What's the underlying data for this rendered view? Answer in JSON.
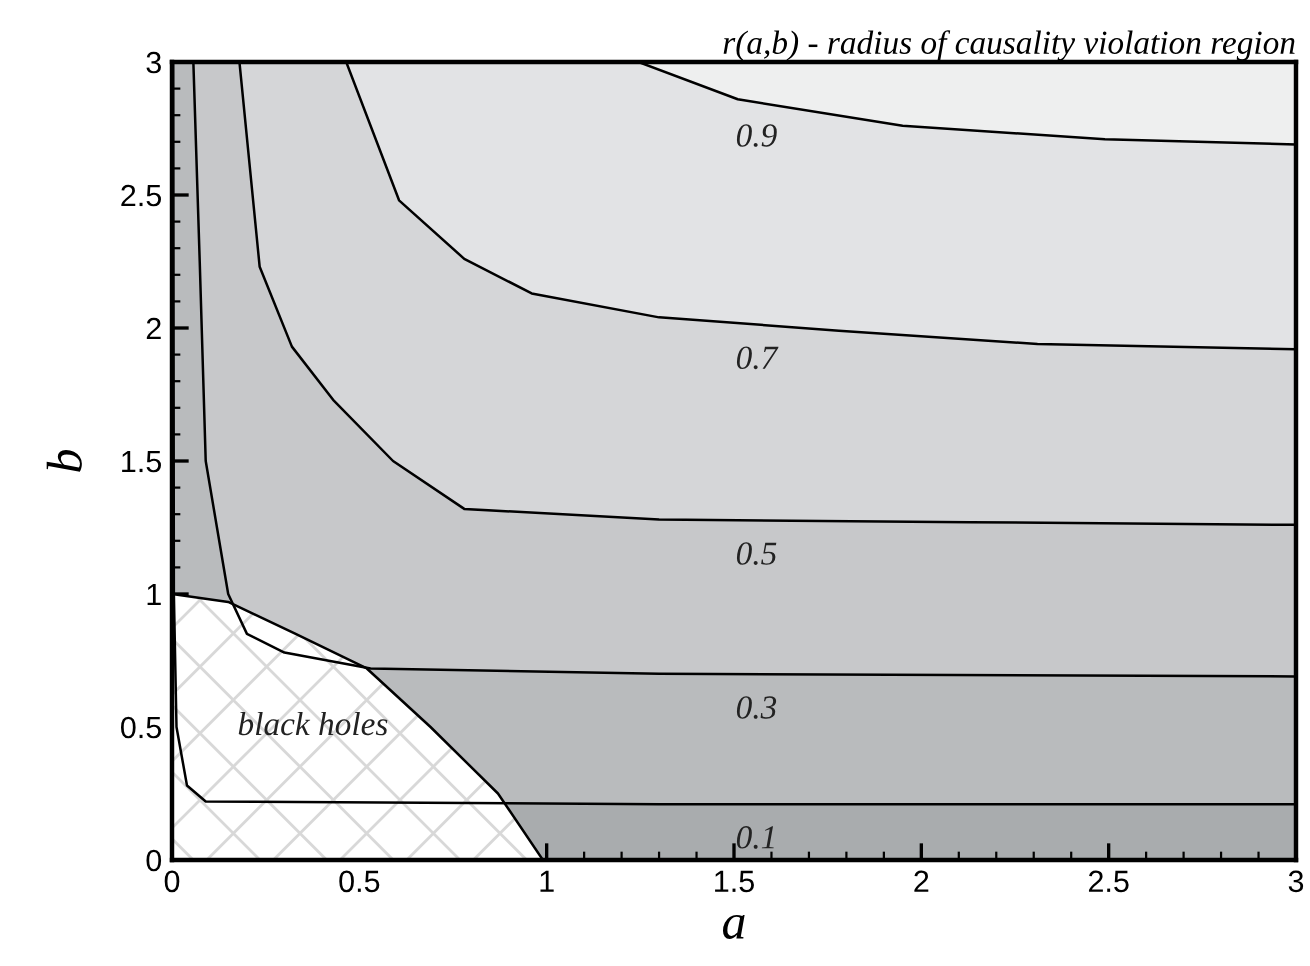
{
  "chart_data": {
    "type": "line",
    "title": "r(a,b) - radius of causality violation region",
    "xlabel": "a",
    "ylabel": "b",
    "xlim": [
      0,
      3
    ],
    "ylim": [
      0,
      3
    ],
    "xticks": [
      0,
      0.5,
      1,
      1.5,
      2,
      2.5,
      3
    ],
    "yticks": [
      0,
      0.5,
      1,
      1.5,
      2,
      2.5,
      3
    ],
    "grid": false,
    "legend": false,
    "colors": [
      "#a9acae",
      "#b9bbbd",
      "#c7c8ca",
      "#d5d6d8",
      "#e2e3e5",
      "#eeefef"
    ],
    "series": [
      {
        "name": "0.1",
        "color": "#000000",
        "x": [
          0.003,
          0.005,
          0.012,
          0.04,
          0.09,
          1.3,
          3.0
        ],
        "values": [
          3.0,
          1.0,
          0.5,
          0.28,
          0.22,
          0.21,
          0.21
        ]
      },
      {
        "name": "0.3",
        "color": "#000000",
        "x": [
          0.057,
          0.074,
          0.09,
          0.12,
          0.15,
          0.2,
          0.3,
          0.53,
          1.3,
          3.0
        ],
        "values": [
          3.0,
          2.25,
          1.5,
          1.25,
          1.0,
          0.85,
          0.78,
          0.72,
          0.7,
          0.69
        ]
      },
      {
        "name": "0.5",
        "color": "#000000",
        "x": [
          0.18,
          0.234,
          0.32,
          0.43,
          0.59,
          0.78,
          1.3,
          2.13,
          3.0
        ],
        "values": [
          3.0,
          2.23,
          1.93,
          1.73,
          1.5,
          1.32,
          1.28,
          1.27,
          1.26
        ]
      },
      {
        "name": "0.7",
        "color": "#000000",
        "x": [
          0.465,
          0.606,
          0.78,
          0.96,
          1.3,
          1.78,
          2.31,
          3.0
        ],
        "values": [
          3.0,
          2.48,
          2.26,
          2.13,
          2.04,
          1.99,
          1.94,
          1.92
        ]
      },
      {
        "name": "0.9",
        "color": "#000000",
        "x": [
          1.245,
          1.51,
          1.95,
          2.49,
          3.0
        ],
        "values": [
          3.0,
          2.86,
          2.76,
          2.71,
          2.69
        ]
      },
      {
        "name": "black holes",
        "type": "area",
        "color": "#ffffff",
        "x": [
          0,
          0.15,
          0.33,
          0.52,
          0.69,
          0.87,
          0.99
        ],
        "values": [
          1.0,
          0.97,
          0.85,
          0.72,
          0.5,
          0.25,
          0.0
        ]
      }
    ]
  }
}
